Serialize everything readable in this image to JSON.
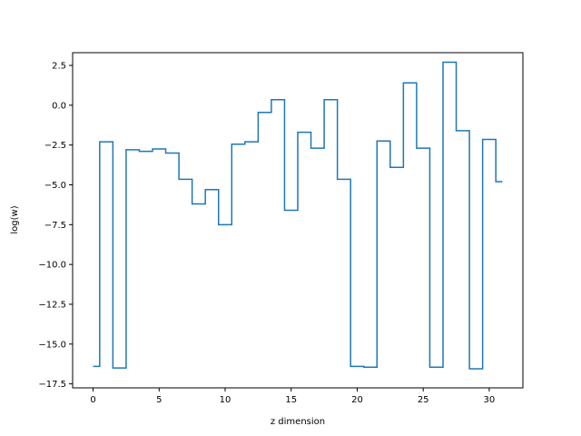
{
  "chart_data": {
    "type": "line",
    "drawstyle": "steps-mid",
    "title": "",
    "xlabel": "z dimension",
    "ylabel": "log(w)",
    "xlim": [
      -1.55,
      32.55
    ],
    "ylim": [
      -17.75,
      3.3
    ],
    "xticks": [
      0,
      5,
      10,
      15,
      20,
      25,
      30
    ],
    "xtick_labels": [
      "0",
      "5",
      "10",
      "15",
      "20",
      "25",
      "30"
    ],
    "yticks": [
      2.5,
      0.0,
      -2.5,
      -5.0,
      -7.5,
      -10.0,
      -12.5,
      -15.0,
      -17.5
    ],
    "ytick_labels": [
      "2.5",
      "0.0",
      "−2.5",
      "−5.0",
      "−7.5",
      "−10.0",
      "−12.5",
      "−15.0",
      "−17.5"
    ],
    "grid": false,
    "legend": "none",
    "series": [
      {
        "color": "#1f77b4",
        "x": [
          0,
          1,
          2,
          3,
          4,
          5,
          6,
          7,
          8,
          9,
          10,
          11,
          12,
          13,
          14,
          15,
          16,
          17,
          18,
          19,
          20,
          21,
          22,
          23,
          24,
          25,
          26,
          27,
          28,
          29,
          30,
          31
        ],
        "y": [
          -16.4,
          -2.3,
          -16.5,
          -2.8,
          -2.9,
          -2.75,
          -3.0,
          -4.65,
          -6.2,
          -5.3,
          -7.5,
          -2.45,
          -2.3,
          -0.45,
          0.35,
          -6.6,
          -1.7,
          -2.7,
          0.35,
          -4.65,
          -16.4,
          -16.45,
          -2.25,
          -3.9,
          1.4,
          -2.7,
          -16.45,
          2.7,
          -1.6,
          -16.55,
          -2.15,
          -4.8
        ]
      }
    ]
  }
}
